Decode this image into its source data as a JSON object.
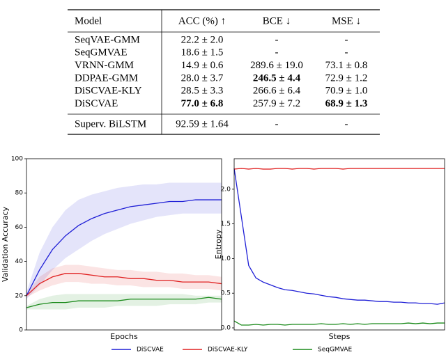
{
  "table": {
    "header": [
      "Model",
      "ACC (%) ↑",
      "BCE ↓",
      "MSE ↓"
    ],
    "rows": [
      [
        "SeqVAE-GMM",
        "22.2 ± 2.0",
        "-",
        "-"
      ],
      [
        "SeqGMVAE",
        "18.6 ± 1.5",
        "-",
        "-"
      ],
      [
        "VRNN-GMM",
        "14.9 ± 0.6",
        "289.6 ± 19.0",
        "73.1 ± 0.8"
      ],
      [
        "DDPAE-GMM",
        "28.0 ± 3.7",
        {
          "text": "246.5 ± 4.4",
          "bold": true
        },
        "72.9 ± 1.2"
      ],
      [
        "DiSCVAE-KLY",
        "28.5 ± 3.3",
        "266.6 ± 6.4",
        "70.9 ± 1.0"
      ],
      [
        "DiSCVAE",
        {
          "text": "77.0 ± 6.8",
          "bold": true
        },
        "257.9 ± 7.2",
        {
          "text": "68.9 ± 1.3",
          "bold": true
        }
      ]
    ],
    "supervised_row": [
      "Superv. BiLSTM",
      "92.59 ± 1.64",
      "-",
      "-"
    ]
  },
  "chart_data": [
    {
      "type": "line",
      "xlabel": "Epochs",
      "ylabel": "Validation Accuracy",
      "ylim": [
        0,
        100
      ],
      "yticks": [
        0,
        20,
        40,
        60,
        80,
        100
      ],
      "series": [
        {
          "name": "DiSCVAE",
          "color": "#1f1fd6",
          "values": [
            20,
            35,
            47,
            55,
            61,
            65,
            68,
            70,
            72,
            73,
            74,
            75,
            75,
            76,
            76,
            76
          ],
          "upper": [
            22,
            45,
            60,
            70,
            76,
            79,
            81,
            83,
            84,
            85,
            85,
            86,
            86,
            86,
            86,
            86
          ],
          "lower": [
            18,
            26,
            35,
            42,
            47,
            52,
            56,
            59,
            62,
            64,
            66,
            67,
            68,
            68,
            68,
            68
          ]
        },
        {
          "name": "DiSCVAE-KLY",
          "color": "#e02020",
          "values": [
            20,
            27,
            31,
            33,
            33,
            32,
            31,
            31,
            30,
            30,
            29,
            29,
            28,
            28,
            28,
            27
          ],
          "upper": [
            21,
            31,
            36,
            38,
            38,
            37,
            36,
            35,
            35,
            34,
            34,
            33,
            33,
            32,
            32,
            31
          ],
          "lower": [
            19,
            23,
            26,
            28,
            28,
            27,
            27,
            26,
            26,
            25,
            25,
            25,
            24,
            24,
            24,
            23
          ]
        },
        {
          "name": "SeqGMVAE",
          "color": "#1a8a1a",
          "values": [
            13,
            15,
            16,
            16,
            17,
            17,
            17,
            17,
            18,
            18,
            18,
            18,
            18,
            18,
            19,
            18
          ],
          "upper": [
            14,
            18,
            20,
            21,
            21,
            21,
            21,
            21,
            21,
            21,
            21,
            21,
            21,
            20,
            20,
            20
          ],
          "lower": [
            12,
            12,
            12,
            12,
            13,
            13,
            13,
            14,
            14,
            14,
            14,
            15,
            15,
            15,
            16,
            16
          ]
        }
      ]
    },
    {
      "type": "line",
      "xlabel": "Steps",
      "ylabel": "Entropy",
      "ylim": [
        -0.03,
        2.44
      ],
      "yticks": [
        {
          "value": 0,
          "label": "0.0"
        },
        {
          "value": 0.5,
          "label": "0.5"
        },
        {
          "value": 1,
          "label": "1.0"
        },
        {
          "value": 1.5,
          "label": "1.5"
        },
        {
          "value": 2,
          "label": "2.0"
        }
      ],
      "series": [
        {
          "color": "#1f1fd6",
          "values": [
            2.3,
            1.6,
            0.9,
            0.72,
            0.66,
            0.62,
            0.58,
            0.55,
            0.54,
            0.52,
            0.5,
            0.49,
            0.47,
            0.45,
            0.44,
            0.42,
            0.41,
            0.4,
            0.4,
            0.39,
            0.38,
            0.38,
            0.37,
            0.37,
            0.36,
            0.36,
            0.35,
            0.35,
            0.34,
            0.36
          ]
        },
        {
          "color": "#e02020",
          "values": [
            2.29,
            2.3,
            2.29,
            2.3,
            2.29,
            2.29,
            2.3,
            2.3,
            2.29,
            2.3,
            2.3,
            2.29,
            2.3,
            2.3,
            2.3,
            2.29,
            2.3,
            2.3,
            2.3,
            2.3,
            2.3,
            2.3,
            2.3,
            2.3,
            2.3,
            2.3,
            2.3,
            2.3,
            2.3,
            2.3
          ]
        },
        {
          "color": "#1a8a1a",
          "values": [
            0.1,
            0.04,
            0.04,
            0.05,
            0.04,
            0.05,
            0.05,
            0.04,
            0.05,
            0.05,
            0.05,
            0.05,
            0.06,
            0.05,
            0.05,
            0.06,
            0.05,
            0.06,
            0.05,
            0.06,
            0.06,
            0.06,
            0.06,
            0.06,
            0.07,
            0.06,
            0.07,
            0.06,
            0.07,
            0.07
          ]
        }
      ]
    }
  ]
}
